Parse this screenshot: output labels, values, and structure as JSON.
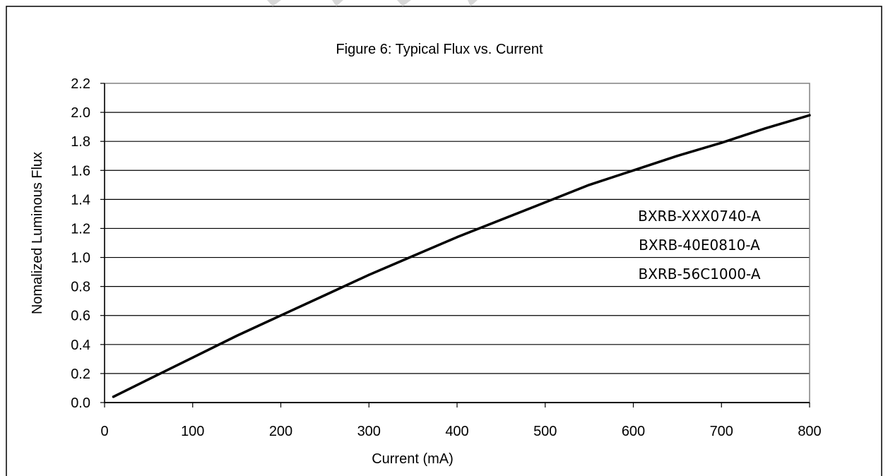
{
  "chart_data": {
    "type": "line",
    "title": "Figure 6:  Typical Flux vs. Current",
    "xlabel": "Current  (mA)",
    "ylabel": "Nomalized Luminous Flux",
    "xlim": [
      0,
      800
    ],
    "ylim": [
      0,
      2.2
    ],
    "x_ticks": [
      "0",
      "100",
      "200",
      "300",
      "400",
      "500",
      "600",
      "700",
      "800"
    ],
    "y_ticks": [
      "0.0",
      "0.2",
      "0.4",
      "0.6",
      "0.8",
      "1.0",
      "1.2",
      "1.4",
      "1.6",
      "1.8",
      "2.0",
      "2.2"
    ],
    "grid": "horizontal",
    "legend_position": "right",
    "legend": [
      "BXRB-XXX0740-A",
      "BXRB-40E0810-A",
      "BXRB-56C1000-A"
    ],
    "series": [
      {
        "color": "#000000",
        "points": [
          [
            10,
            0.04
          ],
          [
            50,
            0.16
          ],
          [
            100,
            0.31
          ],
          [
            150,
            0.46
          ],
          [
            200,
            0.6
          ],
          [
            250,
            0.74
          ],
          [
            300,
            0.88
          ],
          [
            350,
            1.01
          ],
          [
            400,
            1.14
          ],
          [
            450,
            1.26
          ],
          [
            500,
            1.38
          ],
          [
            550,
            1.5
          ],
          [
            600,
            1.6
          ],
          [
            650,
            1.7
          ],
          [
            700,
            1.79
          ],
          [
            750,
            1.89
          ],
          [
            800,
            1.98
          ]
        ]
      }
    ]
  }
}
